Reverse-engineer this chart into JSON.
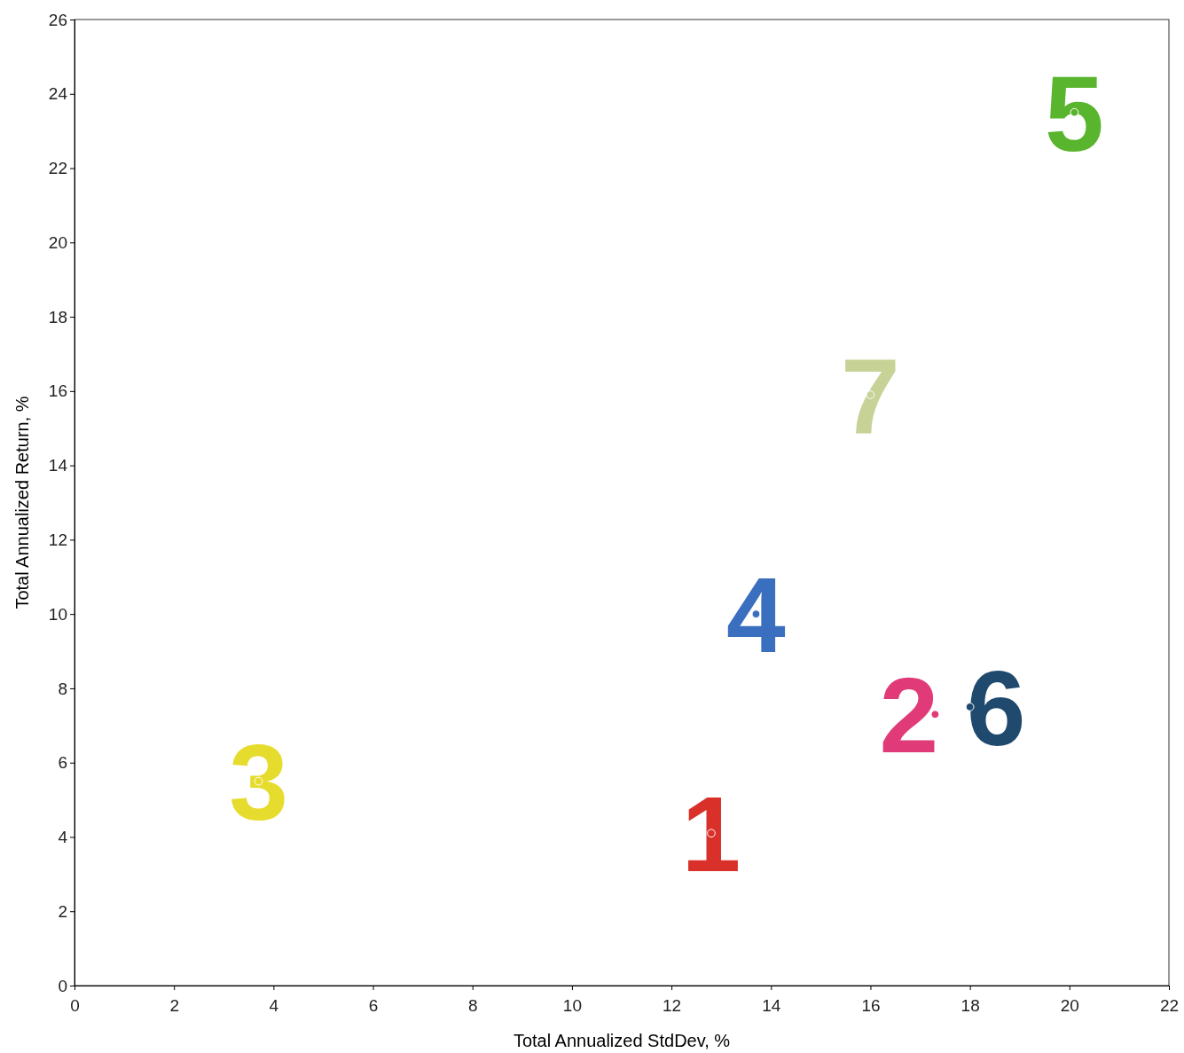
{
  "chart_data": {
    "type": "scatter",
    "xlabel": "Total Annualized StdDev, %",
    "ylabel": "Total Annualized Return, %",
    "xlim": [
      0,
      22
    ],
    "xticks": [
      0,
      2,
      4,
      6,
      8,
      10,
      12,
      14,
      16,
      18,
      20,
      22
    ],
    "ylim": [
      0,
      26
    ],
    "yticks": [
      0,
      2,
      4,
      6,
      8,
      10,
      12,
      14,
      16,
      18,
      20,
      22,
      24,
      26
    ],
    "grid": false,
    "marker": "circle",
    "series": [
      {
        "name": "1",
        "color": "#d9302a",
        "x": [
          12.8
        ],
        "values": [
          4.1
        ]
      },
      {
        "name": "2",
        "color": "#e03b78",
        "x": [
          17.3
        ],
        "values": [
          7.3
        ]
      },
      {
        "name": "3",
        "color": "#e6dc2e",
        "x": [
          3.7
        ],
        "values": [
          5.5
        ]
      },
      {
        "name": "4",
        "color": "#3a6fc0",
        "x": [
          13.7
        ],
        "values": [
          10.0
        ]
      },
      {
        "name": "5",
        "color": "#5ab52e",
        "x": [
          20.1
        ],
        "values": [
          23.5
        ]
      },
      {
        "name": "6",
        "color": "#1f4a6e",
        "x": [
          18.0
        ],
        "values": [
          7.5
        ]
      },
      {
        "name": "7",
        "color": "#c6d296",
        "x": [
          16.0
        ],
        "values": [
          15.9
        ]
      }
    ]
  }
}
